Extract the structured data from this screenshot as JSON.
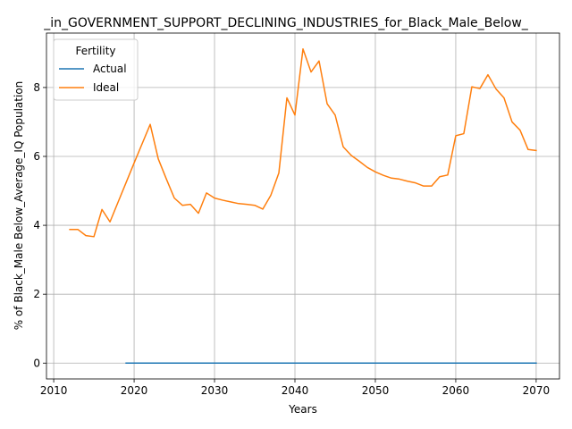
{
  "chart_data": {
    "type": "line",
    "title": "_in_GOVERNMENT_SUPPORT_DECLINING_INDUSTRIES_for_Black_Male_Below_",
    "xlabel": "Years",
    "ylabel": "% of Black_Male Below_Average_IQ Population",
    "xlim": [
      2009.1,
      2072.9
    ],
    "ylim": [
      -0.46,
      9.58
    ],
    "xticks": [
      2010,
      2020,
      2030,
      2040,
      2050,
      2060,
      2070
    ],
    "yticks": [
      0,
      2,
      4,
      6,
      8
    ],
    "grid": true,
    "legend": {
      "title": "Fertility",
      "placement": "top-left"
    },
    "series": [
      {
        "name": "Actual",
        "color": "#1f77b4",
        "x": [
          2019,
          2020,
          2021,
          2022,
          2023,
          2024,
          2025,
          2026,
          2027,
          2028,
          2029,
          2030,
          2031,
          2032,
          2033,
          2034,
          2035,
          2036,
          2037,
          2038,
          2039,
          2040,
          2041,
          2042,
          2043,
          2044,
          2045,
          2046,
          2047,
          2048,
          2049,
          2050,
          2051,
          2052,
          2053,
          2054,
          2055,
          2056,
          2057,
          2058,
          2059,
          2060,
          2061,
          2062,
          2063,
          2064,
          2065,
          2066,
          2067,
          2068,
          2069,
          2070
        ],
        "y": [
          0,
          0,
          0,
          0,
          0,
          0,
          0,
          0,
          0,
          0,
          0,
          0,
          0,
          0,
          0,
          0,
          0,
          0,
          0,
          0,
          0,
          0,
          0,
          0,
          0,
          0,
          0,
          0,
          0,
          0,
          0,
          0,
          0,
          0,
          0,
          0,
          0,
          0,
          0,
          0,
          0,
          0,
          0,
          0,
          0,
          0,
          0,
          0,
          0,
          0,
          0,
          0
        ]
      },
      {
        "name": "Ideal",
        "color": "#ff7f0e",
        "x": [
          2012,
          2013,
          2014,
          2015,
          2016,
          2017,
          2018,
          2019,
          2020,
          2021,
          2022,
          2023,
          2024,
          2025,
          2026,
          2027,
          2028,
          2029,
          2030,
          2031,
          2032,
          2033,
          2034,
          2035,
          2036,
          2037,
          2038,
          2039,
          2040,
          2041,
          2042,
          2043,
          2044,
          2045,
          2046,
          2047,
          2048,
          2049,
          2050,
          2051,
          2052,
          2053,
          2054,
          2055,
          2056,
          2057,
          2058,
          2059,
          2060,
          2061,
          2062,
          2063,
          2064,
          2065,
          2066,
          2067,
          2068,
          2069,
          2070
        ],
        "y": [
          3.88,
          3.88,
          3.7,
          3.67,
          4.46,
          4.1,
          4.67,
          5.24,
          5.81,
          6.37,
          6.93,
          5.93,
          5.35,
          4.79,
          4.58,
          4.61,
          4.35,
          4.94,
          4.79,
          4.73,
          4.68,
          4.63,
          4.61,
          4.58,
          4.47,
          4.87,
          5.52,
          7.7,
          7.2,
          9.12,
          8.45,
          8.77,
          7.53,
          7.2,
          6.28,
          6.03,
          5.86,
          5.68,
          5.55,
          5.45,
          5.37,
          5.34,
          5.28,
          5.23,
          5.14,
          5.14,
          5.41,
          5.46,
          6.6,
          6.66,
          8.02,
          7.97,
          8.37,
          7.96,
          7.7,
          7.0,
          6.76,
          6.2,
          6.17
        ]
      }
    ]
  }
}
